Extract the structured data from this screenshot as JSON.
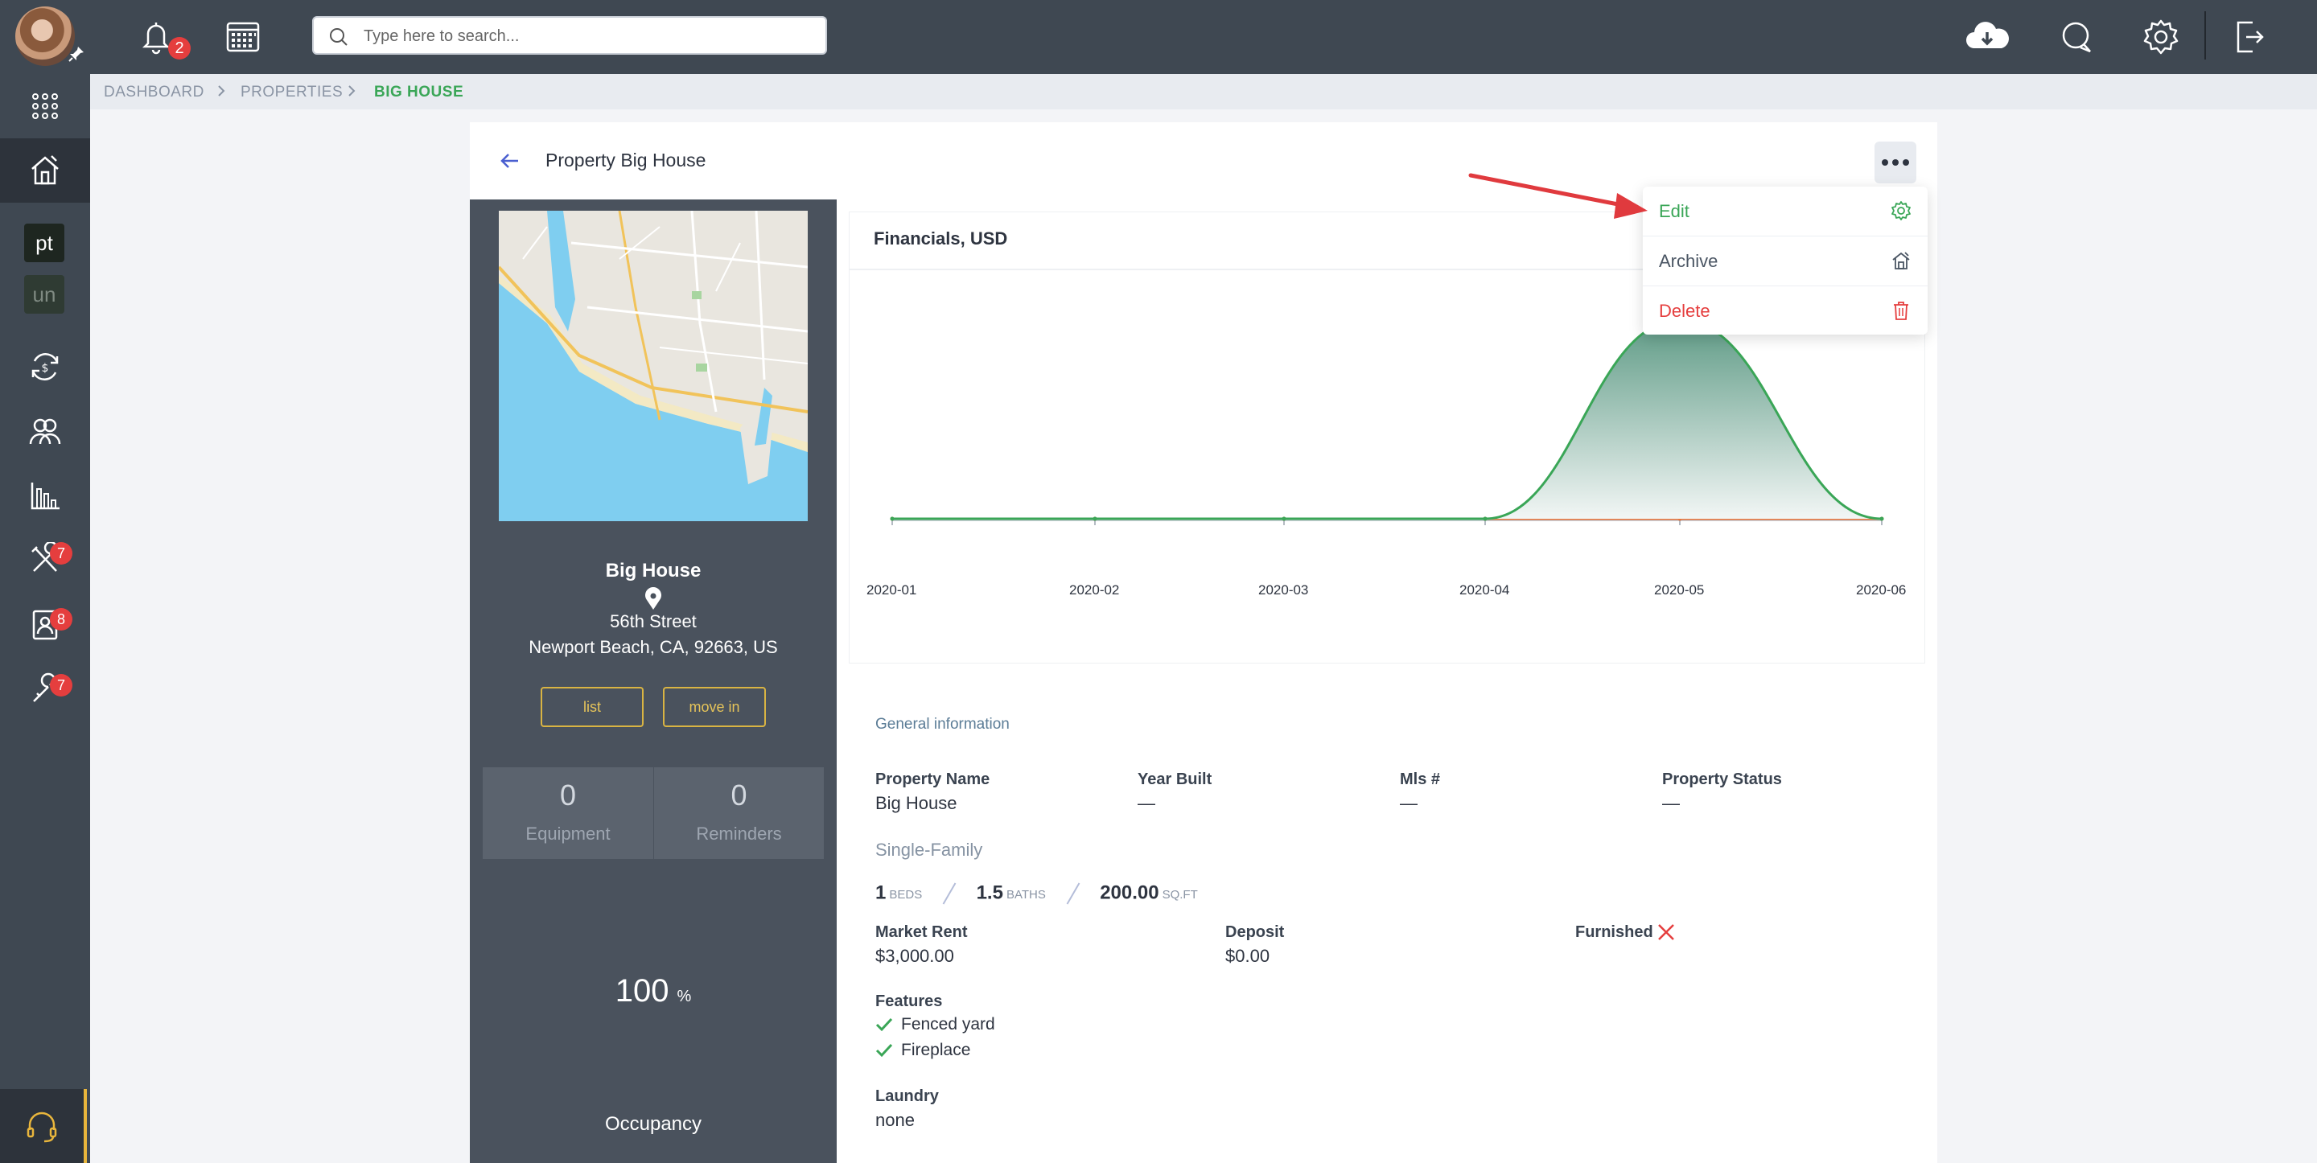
{
  "topbar": {
    "notifications_count": "2",
    "search_placeholder": "Type here to search..."
  },
  "sidebar": {
    "chip_pt": "pt",
    "chip_un": "un",
    "badges": {
      "maintenance": "7",
      "tenants": "8",
      "tools": "7"
    }
  },
  "breadcrumb": [
    "DASHBOARD",
    "PROPERTIES",
    "BIG HOUSE"
  ],
  "header": {
    "title": "Property Big House"
  },
  "menu": {
    "edit": "Edit",
    "archive": "Archive",
    "delete": "Delete"
  },
  "property": {
    "name": "Big House",
    "street": "56th Street",
    "city_line": "Newport Beach, CA, 92663, US",
    "list_btn": "list",
    "move_in_btn": "move in",
    "equipment_count": "0",
    "equipment_label": "Equipment",
    "reminders_count": "0",
    "reminders_label": "Reminders",
    "occupancy_value": "100",
    "occupancy_unit": "%",
    "occupancy_label": "Occupancy"
  },
  "chart_data": {
    "type": "area",
    "title": "Financials, USD",
    "x": [
      "2020-01",
      "2020-02",
      "2020-03",
      "2020-04",
      "2020-05",
      "2020-06"
    ],
    "series": [
      {
        "values": [
          0,
          0,
          0,
          0,
          3000,
          0
        ],
        "color": "#3aa657"
      },
      {
        "values": [
          0,
          0,
          0,
          0,
          0,
          0
        ],
        "color": "#e8743b"
      }
    ],
    "grid": false
  },
  "general": {
    "heading": "General information",
    "property_name_label": "Property Name",
    "property_name_value": "Big House",
    "year_built_label": "Year Built",
    "year_built_value": "—",
    "mls_label": "Mls #",
    "mls_value": "—",
    "status_label": "Property Status",
    "status_value": "—",
    "type": "Single-Family",
    "beds_value": "1",
    "beds_unit": "BEDS",
    "baths_value": "1.5",
    "baths_unit": "BATHS",
    "sqft_value": "200.00",
    "sqft_unit": "SQ.FT",
    "market_rent_label": "Market Rent",
    "market_rent_value": "$3,000.00",
    "deposit_label": "Deposit",
    "deposit_value": "$0.00",
    "furnished_label": "Furnished",
    "features_label": "Features",
    "features": [
      "Fenced yard",
      "Fireplace"
    ],
    "laundry_label": "Laundry",
    "laundry_value": "none"
  },
  "colors": {
    "accent_green": "#3aa657",
    "danger": "#e53e3e",
    "gold": "#d9b443",
    "arrow": "#e03a3e"
  }
}
